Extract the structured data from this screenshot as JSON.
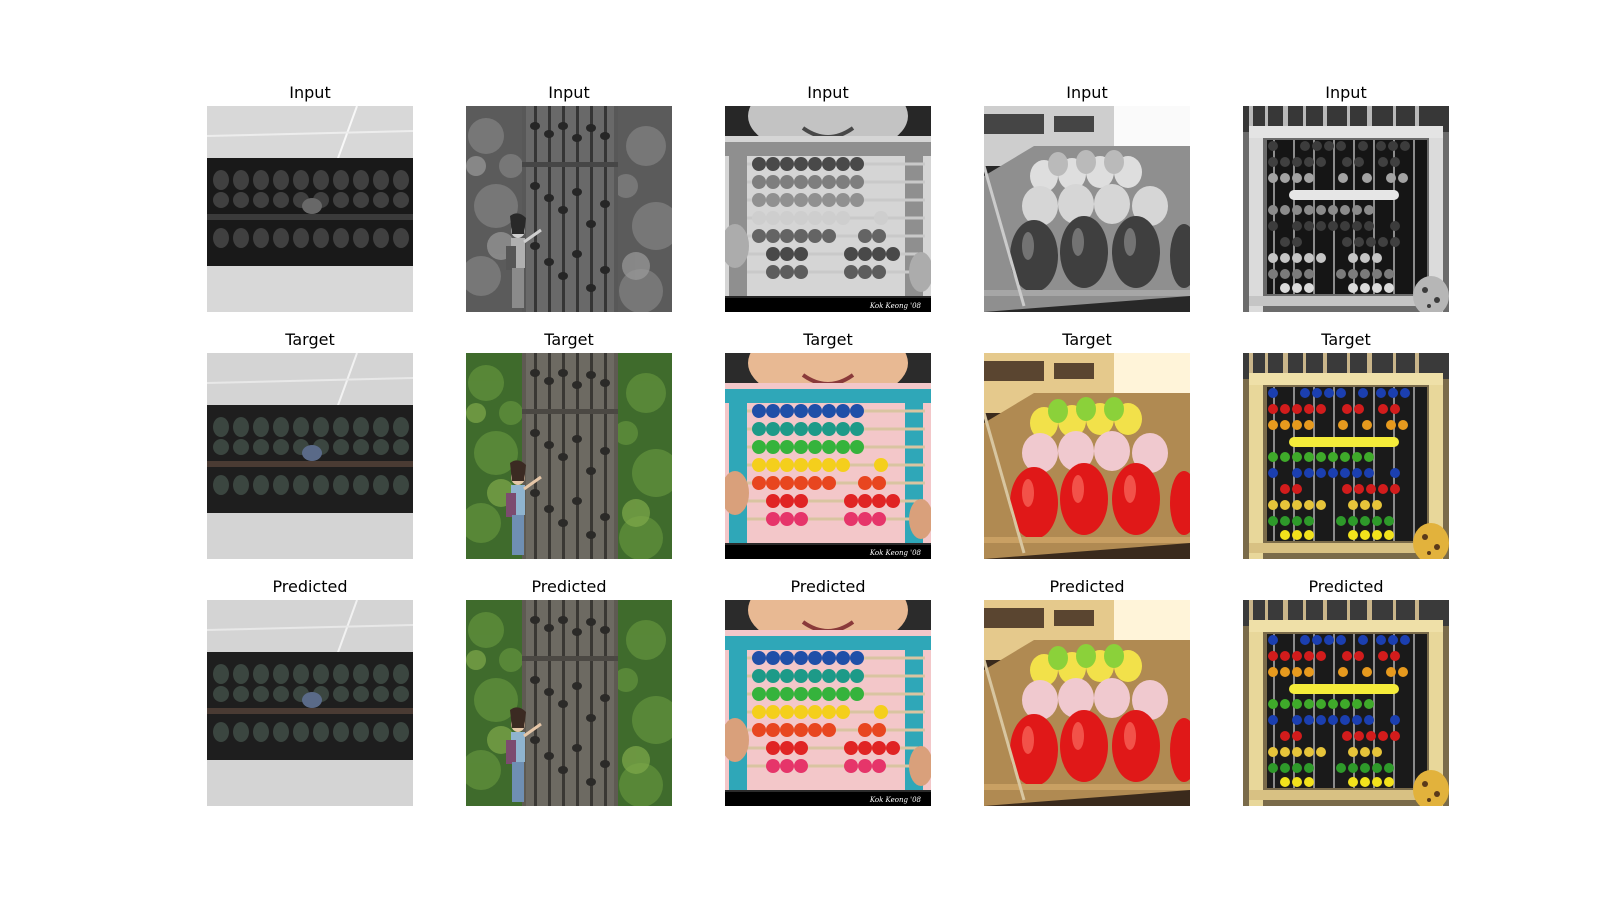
{
  "figure": {
    "rows": [
      {
        "label": "Input",
        "render": "grayscale"
      },
      {
        "label": "Target",
        "render": "color"
      },
      {
        "label": "Predicted",
        "render": "color"
      }
    ],
    "columns": [
      {
        "subject": "abacus-closeup-on-floor"
      },
      {
        "subject": "giant-abacus-with-woman-in-greenery"
      },
      {
        "subject": "child-with-colorful-abacus",
        "watermark": "Kok Keong '08"
      },
      {
        "subject": "colored-bead-macro"
      },
      {
        "subject": "rainbow-abacus-wooden-frame"
      }
    ]
  }
}
